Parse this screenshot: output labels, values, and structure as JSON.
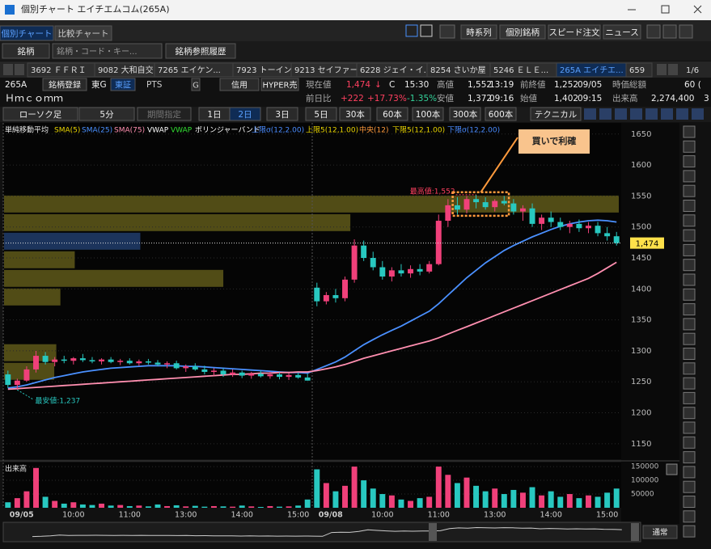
{
  "window": {
    "title": "個別チャート エイチエムコム(265A)"
  },
  "tabs": [
    "個別チャート",
    "比較チャート"
  ],
  "top_buttons": [
    "時系列",
    "個別銘柄",
    "スピード注文",
    "ニュース"
  ],
  "search": {
    "label": "銘柄",
    "placeholder": "銘柄・コード・キー...",
    "history": "銘柄参照履歴"
  },
  "stock_tabs": [
    "3692 ＦＦＲＩ",
    "9082 大和自交",
    "7265 エイケン...",
    "7923 トーイン",
    "9213 セイファート",
    "6228 ジェイ・イ...",
    "8254 さいか屋",
    "5246 ＥＬＥ...",
    "265A エイチエ...",
    "659"
  ],
  "page_indicator": "1/6",
  "quote": {
    "row1": [
      "265A",
      "銘柄登録",
      "東G",
      "東証",
      "PTS",
      "G",
      "信用",
      "HYPER売",
      "現在値",
      "1,474",
      "↓",
      "C",
      "15:30",
      "高値",
      "1,552",
      "13:19",
      "前終値",
      "1,252",
      "09/05",
      "時価総額",
      "60 ("
    ],
    "row2": [
      "Ｈｍｃｏｍｍ",
      "前日比",
      "+222",
      "+17.73%",
      "-1.35%",
      "安値",
      "1,372",
      "09:16",
      "始値",
      "1,402",
      "09:15",
      "出来高",
      "2,274,400",
      "3"
    ]
  },
  "toolbar": {
    "chart_type": "ローソク足",
    "interval": "5分",
    "period": "期間指定",
    "ranges": [
      "1日",
      "2日",
      "3日",
      "5日",
      "30本",
      "60本",
      "100本",
      "300本",
      "600本"
    ],
    "active_range": "2日",
    "technical": "テクニカル"
  },
  "chart_data": {
    "type": "candlestick",
    "legend_label": "単純移動平均",
    "legend": [
      {
        "name": "SMA(5)",
        "color": "#e8d400"
      },
      {
        "name": "SMA(25)",
        "color": "#4a90ff"
      },
      {
        "name": "SMA(75)",
        "color": "#ff8fb0"
      },
      {
        "name": "VWAP",
        "color": "#ffffff"
      },
      {
        "name": "VWAP",
        "color": "#33e033"
      },
      {
        "name": "ボリンジャーバンド",
        "color": "#ffffff"
      },
      {
        "name": "上限σ(12,2.00)",
        "color": "#4a8cff"
      },
      {
        "name": "上限5(12,1.00)",
        "color": "#e8d400"
      },
      {
        "name": "中央(12)",
        "color": "#ff9a3c"
      },
      {
        "name": "下限5(12,1.00)",
        "color": "#e8d400"
      },
      {
        "name": "下限σ(12,2.00)",
        "color": "#4a8cff"
      }
    ],
    "up_color": "#f0407a",
    "down_color": "#28c8c0",
    "open": [
      1262,
      1245,
      1252,
      1270,
      1292,
      1282,
      1286,
      1284,
      1288,
      1285,
      1283,
      1286,
      1282,
      1284,
      1280,
      1283,
      1281,
      1278,
      1280,
      1272,
      1275,
      1270,
      1266,
      1268,
      1262,
      1265,
      1260,
      1263,
      1259,
      1262,
      1258,
      1261,
      1257,
      1402,
      1380,
      1390,
      1385,
      1415,
      1470,
      1450,
      1435,
      1420,
      1430,
      1425,
      1432,
      1428,
      1440,
      1510,
      1535,
      1528,
      1545,
      1540,
      1532,
      1542,
      1538,
      1525,
      1530,
      1505,
      1515,
      1508,
      1500,
      1505,
      1498,
      1502,
      1490,
      1485
    ],
    "high": [
      1268,
      1255,
      1275,
      1300,
      1298,
      1290,
      1292,
      1290,
      1295,
      1290,
      1288,
      1290,
      1287,
      1288,
      1286,
      1287,
      1285,
      1283,
      1284,
      1278,
      1280,
      1276,
      1272,
      1272,
      1270,
      1268,
      1266,
      1268,
      1266,
      1265,
      1264,
      1265,
      1263,
      1410,
      1395,
      1400,
      1420,
      1480,
      1478,
      1460,
      1445,
      1435,
      1440,
      1438,
      1440,
      1445,
      1520,
      1545,
      1548,
      1550,
      1552,
      1548,
      1545,
      1550,
      1545,
      1535,
      1538,
      1520,
      1525,
      1515,
      1510,
      1512,
      1508,
      1508,
      1500,
      1492
    ],
    "low": [
      1240,
      1237,
      1250,
      1265,
      1278,
      1275,
      1280,
      1278,
      1282,
      1280,
      1278,
      1280,
      1277,
      1278,
      1276,
      1278,
      1275,
      1272,
      1270,
      1266,
      1268,
      1262,
      1260,
      1258,
      1258,
      1256,
      1255,
      1257,
      1255,
      1254,
      1253,
      1255,
      1252,
      1372,
      1375,
      1378,
      1380,
      1410,
      1445,
      1430,
      1415,
      1412,
      1420,
      1418,
      1422,
      1425,
      1438,
      1500,
      1520,
      1522,
      1530,
      1528,
      1525,
      1535,
      1520,
      1510,
      1500,
      1495,
      1500,
      1495,
      1490,
      1492,
      1490,
      1485,
      1478,
      1470
    ],
    "close": [
      1245,
      1252,
      1270,
      1292,
      1282,
      1286,
      1284,
      1288,
      1285,
      1283,
      1286,
      1282,
      1284,
      1280,
      1283,
      1281,
      1278,
      1280,
      1272,
      1275,
      1270,
      1266,
      1268,
      1262,
      1265,
      1260,
      1263,
      1259,
      1262,
      1258,
      1261,
      1257,
      1252,
      1380,
      1390,
      1385,
      1415,
      1470,
      1450,
      1435,
      1420,
      1430,
      1425,
      1432,
      1428,
      1440,
      1510,
      1535,
      1528,
      1545,
      1540,
      1532,
      1542,
      1538,
      1525,
      1530,
      1505,
      1515,
      1508,
      1500,
      1505,
      1498,
      1502,
      1490,
      1485,
      1474
    ],
    "series": [
      {
        "name": "SMA(25)",
        "color": "#4a90ff",
        "values": [
          1240,
          1242,
          1245,
          1249,
          1253,
          1257,
          1260,
          1263,
          1266,
          1268,
          1270,
          1272,
          1273,
          1274,
          1275,
          1276,
          1276,
          1276,
          1276,
          1275,
          1275,
          1274,
          1273,
          1272,
          1271,
          1270,
          1269,
          1268,
          1267,
          1266,
          1265,
          1265,
          1264,
          1270,
          1276,
          1282,
          1290,
          1300,
          1310,
          1318,
          1326,
          1333,
          1340,
          1348,
          1356,
          1364,
          1376,
          1390,
          1404,
          1418,
          1430,
          1442,
          1452,
          1462,
          1470,
          1477,
          1484,
          1490,
          1496,
          1501,
          1505,
          1508,
          1510,
          1511,
          1510,
          1508
        ]
      },
      {
        "name": "SMA(75)",
        "color": "#ff8fb0",
        "values": [
          1238,
          1239,
          1240,
          1241,
          1242,
          1243,
          1244,
          1245,
          1246,
          1247,
          1248,
          1249,
          1250,
          1251,
          1252,
          1253,
          1254,
          1255,
          1256,
          1257,
          1258,
          1259,
          1260,
          1261,
          1262,
          1262,
          1263,
          1264,
          1264,
          1265,
          1265,
          1266,
          1266,
          1268,
          1271,
          1274,
          1278,
          1283,
          1288,
          1292,
          1296,
          1300,
          1304,
          1308,
          1312,
          1316,
          1321,
          1327,
          1333,
          1339,
          1345,
          1351,
          1357,
          1363,
          1369,
          1375,
          1381,
          1387,
          1393,
          1399,
          1405,
          1411,
          1417,
          1425,
          1434,
          1443
        ]
      }
    ],
    "volume": [
      20000,
      35000,
      60000,
      145000,
      40000,
      25000,
      15000,
      20000,
      12000,
      10000,
      15000,
      8000,
      10000,
      6000,
      8000,
      5000,
      12000,
      6000,
      9000,
      5000,
      7000,
      4000,
      6000,
      5000,
      4000,
      8000,
      5000,
      3000,
      6000,
      4000,
      5000,
      8000,
      30000,
      140000,
      90000,
      60000,
      80000,
      150000,
      100000,
      70000,
      50000,
      45000,
      30000,
      25000,
      35000,
      40000,
      150000,
      120000,
      90000,
      110000,
      80000,
      60000,
      70000,
      50000,
      65000,
      55000,
      75000,
      45000,
      60000,
      40000,
      50000,
      35000,
      45000,
      40000,
      55000,
      70000
    ],
    "volume_label": "出来高",
    "ylim": [
      1125,
      1668
    ],
    "yticks": [
      1150,
      1200,
      1250,
      1300,
      1350,
      1400,
      1450,
      1500,
      1550,
      1600,
      1650
    ],
    "volume_ylim": [
      0,
      165000
    ],
    "volume_yticks": [
      50000,
      100000,
      150000
    ],
    "x_labels": [
      {
        "index": 0,
        "label": "09/05"
      },
      {
        "index": 7,
        "label": "10:00"
      },
      {
        "index": 13,
        "label": "11:00"
      },
      {
        "index": 19,
        "label": "13:00"
      },
      {
        "index": 25,
        "label": "14:00"
      },
      {
        "index": 31,
        "label": "15:00"
      },
      {
        "index": 33,
        "label": "09/08"
      },
      {
        "index": 40,
        "label": "10:00"
      },
      {
        "index": 46,
        "label": "11:00"
      },
      {
        "index": 52,
        "label": "13:00"
      },
      {
        "index": 58,
        "label": "14:00"
      },
      {
        "index": 64,
        "label": "15:00"
      }
    ],
    "last_price": {
      "value": 1474,
      "label": "1,474"
    },
    "high_label": "最高値:1,552",
    "high_index": 50,
    "high_value": 1552,
    "low_label": "最安値:1,237",
    "low_index": 1,
    "low_value": 1237,
    "annotation": {
      "text": "買いで利確",
      "from_index": 48,
      "to_index": 53,
      "low": 1518,
      "high": 1556
    },
    "volume_profile": {
      "bins": [
        1552,
        1522,
        1492,
        1462,
        1432,
        1402,
        1372,
        1342,
        1312,
        1282,
        1252
      ],
      "values": [
        600000,
        338000,
        133000,
        69000,
        214000,
        55000,
        0,
        0,
        51000,
        49000
      ],
      "xlim": [
        0,
        600000
      ],
      "color": "#5a5418",
      "highlight_color": "#1f3a66",
      "highlight_index": 2
    },
    "navigator_mode": "通常"
  }
}
